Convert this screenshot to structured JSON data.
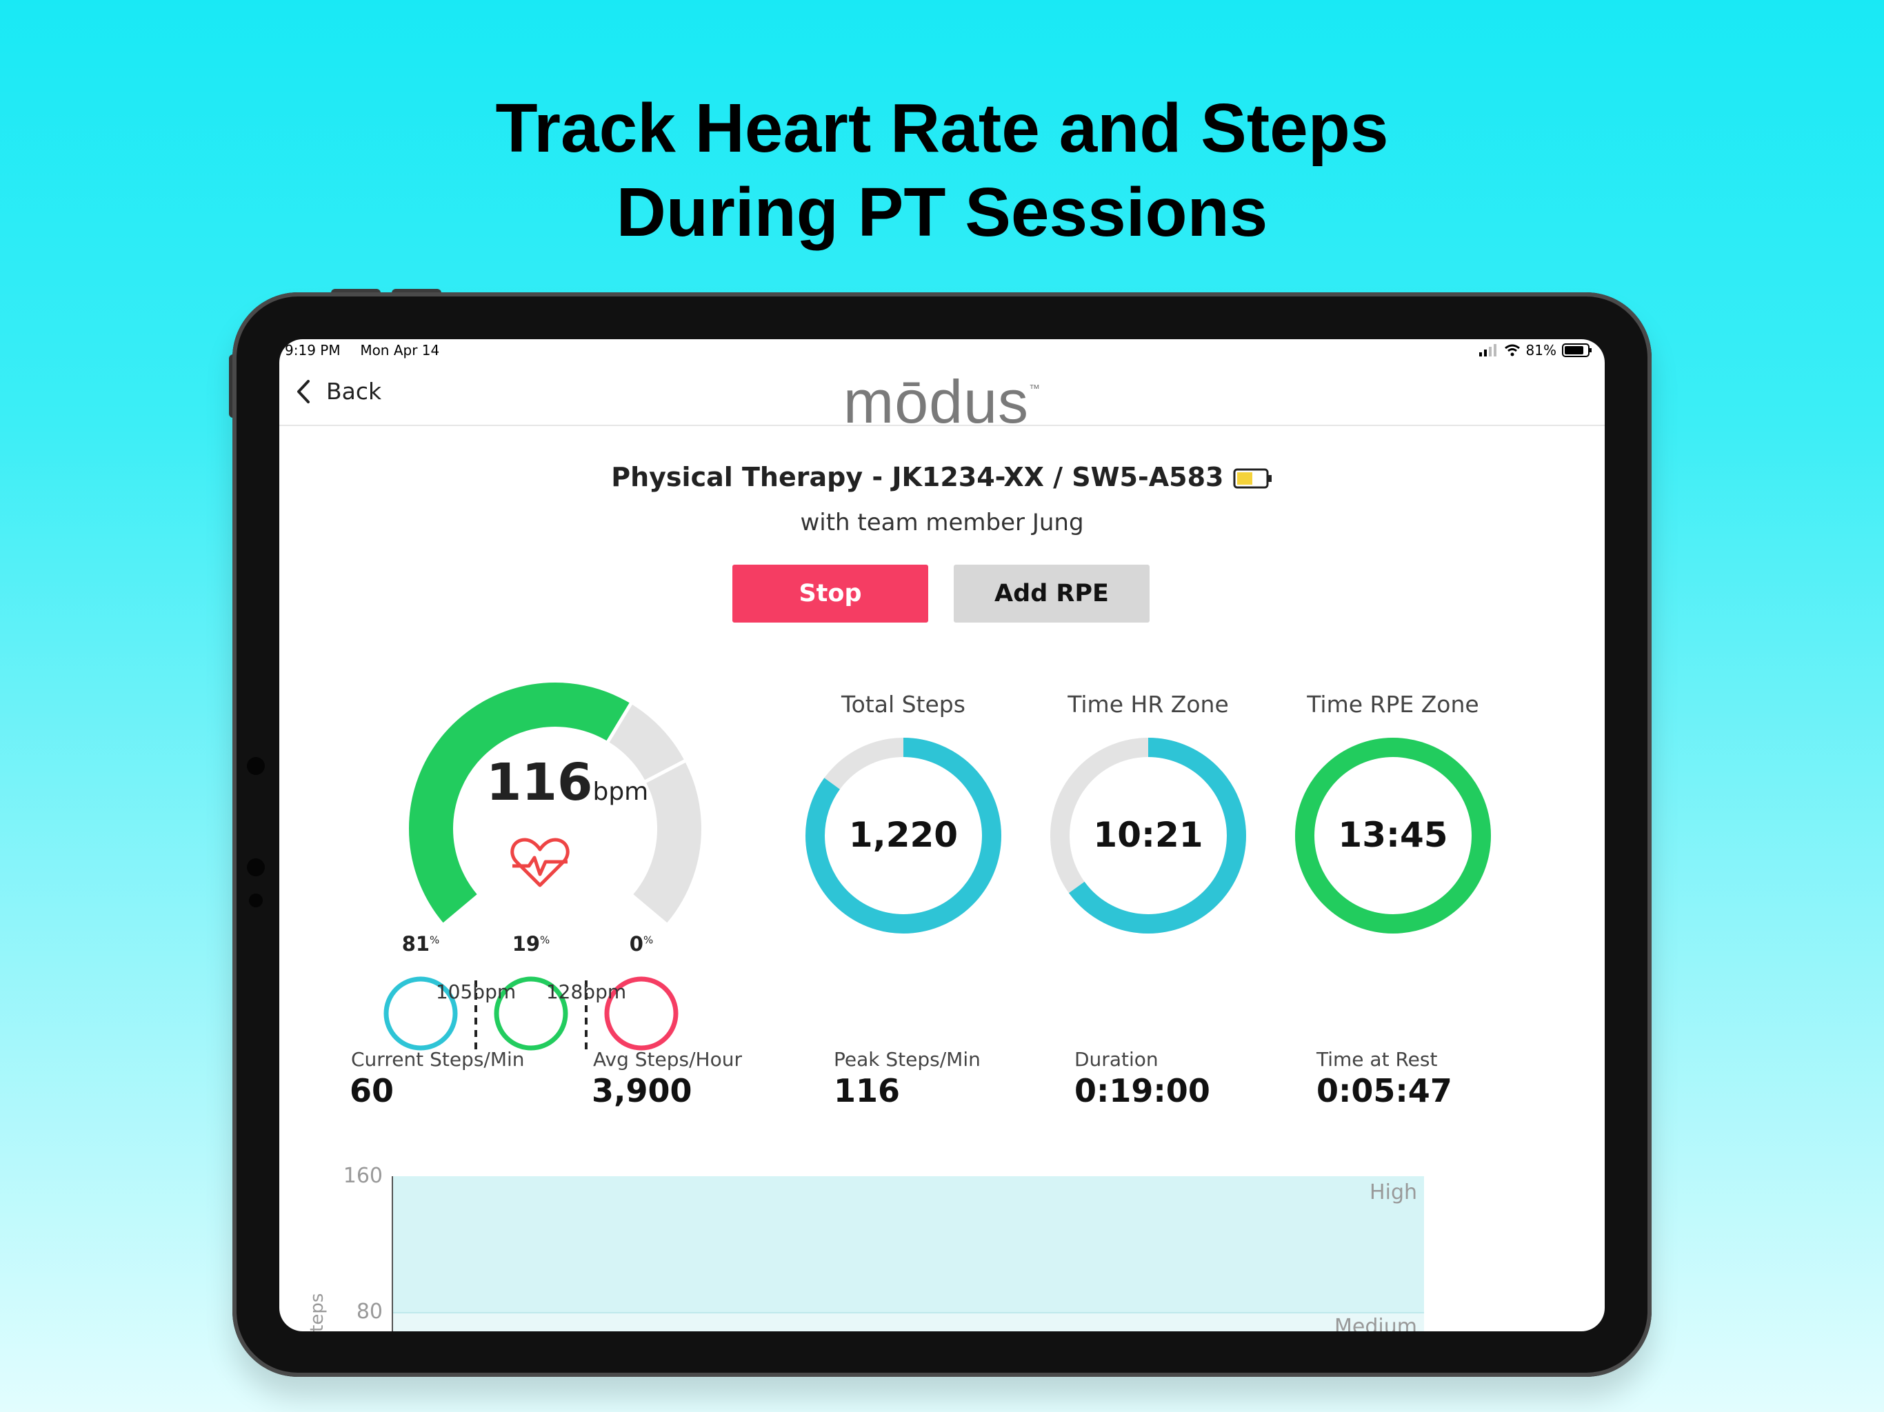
{
  "headline": {
    "line1": "Track Heart Rate and Steps",
    "line2": "During PT Sessions"
  },
  "status_bar": {
    "time": "9:19 PM",
    "date": "Mon Apr 14",
    "battery": "81%"
  },
  "nav": {
    "back_label": "Back",
    "logo_text": "mōdus",
    "logo_tm": "™"
  },
  "session": {
    "title": "Physical Therapy - JK1234-XX / SW5-A583",
    "subtitle": "with team member Jung"
  },
  "buttons": {
    "stop": "Stop",
    "add_rpe": "Add RPE"
  },
  "heart_rate": {
    "value": "116",
    "unit": "bpm",
    "gauge_fill_fraction": 0.62,
    "zones": [
      {
        "pct": "81",
        "color": "#2ec4d6"
      },
      {
        "pct": "19",
        "color": "#22cc5e"
      },
      {
        "pct": "0",
        "color": "#f53d63"
      }
    ],
    "thresholds": [
      "105bpm",
      "128bpm"
    ]
  },
  "rings": [
    {
      "title": "Total Steps",
      "value": "1,220",
      "fraction": 0.85,
      "color": "#2ec4d6"
    },
    {
      "title": "Time HR Zone",
      "value": "10:21",
      "fraction": 0.65,
      "color": "#2ec4d6"
    },
    {
      "title": "Time RPE Zone",
      "value": "13:45",
      "fraction": 1.0,
      "color": "#22cc5e"
    }
  ],
  "metrics": [
    {
      "label": "Current Steps/Min",
      "value": "60"
    },
    {
      "label": "Avg Steps/Hour",
      "value": "3,900"
    },
    {
      "label": "Peak Steps/Min",
      "value": "116"
    },
    {
      "label": "Duration",
      "value": "0:19:00"
    },
    {
      "label": "Time at Rest",
      "value": "0:05:47"
    }
  ],
  "chart": {
    "y_ticks": [
      "160",
      "80"
    ],
    "y_label": "Steps",
    "zone_high": "High",
    "zone_medium": "Medium"
  },
  "colors": {
    "accent_cyan": "#2ec4d6",
    "accent_green": "#22cc5e",
    "stop_red": "#f53d63",
    "battery_yellow": "#f5d33b"
  }
}
